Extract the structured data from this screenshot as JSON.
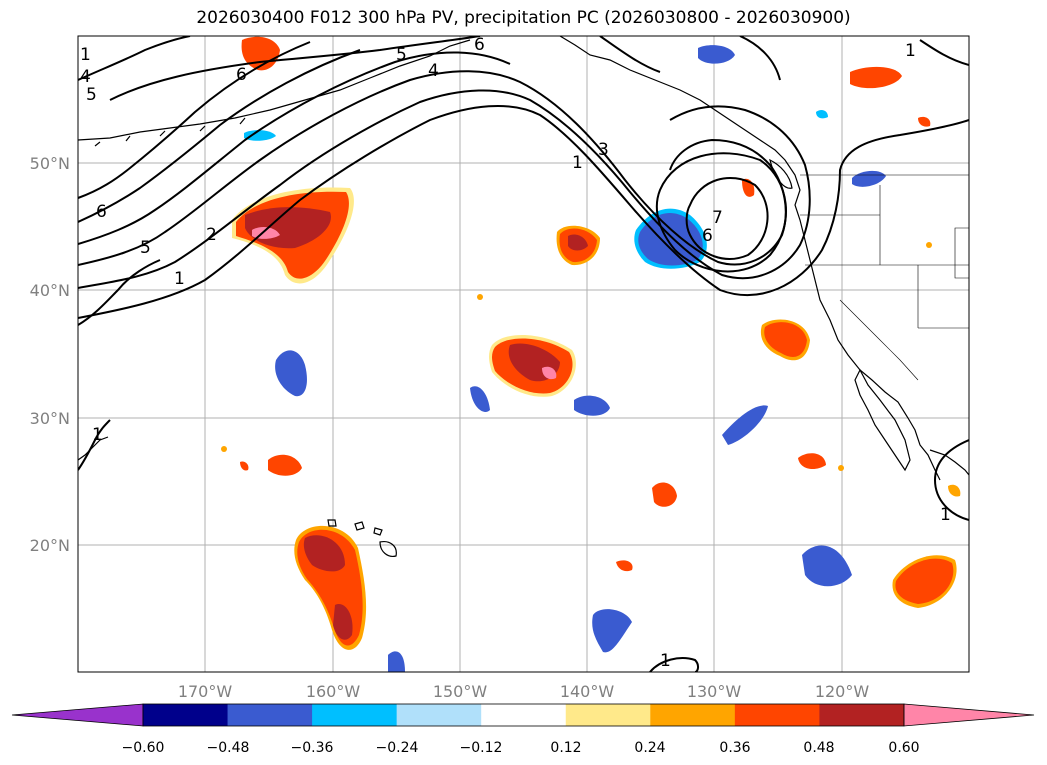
{
  "title": "2026030400 F012 300 hPa PV, precipitation PC (2026030800 - 2026030900)",
  "map": {
    "lat_labels": [
      "50°N",
      "40°N",
      "30°N",
      "20°N"
    ],
    "lon_labels": [
      "170°W",
      "160°W",
      "150°W",
      "140°W",
      "130°W",
      "120°W"
    ],
    "extent": {
      "lon_min": -180,
      "lon_max": -110,
      "lat_min": 10,
      "lat_max": 60
    },
    "gridlines": true,
    "contour_labels": [
      "5",
      "6",
      "4",
      "6",
      "6",
      "5",
      "2",
      "1",
      "3",
      "1",
      "7",
      "6",
      "1",
      "1",
      "1",
      "1",
      "1",
      "5",
      "4"
    ]
  },
  "colorbar": {
    "ticks": [
      "−0.60",
      "−0.48",
      "−0.36",
      "−0.24",
      "−0.12",
      "0.12",
      "0.24",
      "0.36",
      "0.48",
      "0.60"
    ],
    "colors": [
      "#9932cc",
      "#00008b",
      "#3a5bd0",
      "#00bfff",
      "#b0e0fa",
      "#ffffff",
      "#ffe98a",
      "#ffa500",
      "#ff4500",
      "#b22222",
      "#ff85a8"
    ]
  }
}
